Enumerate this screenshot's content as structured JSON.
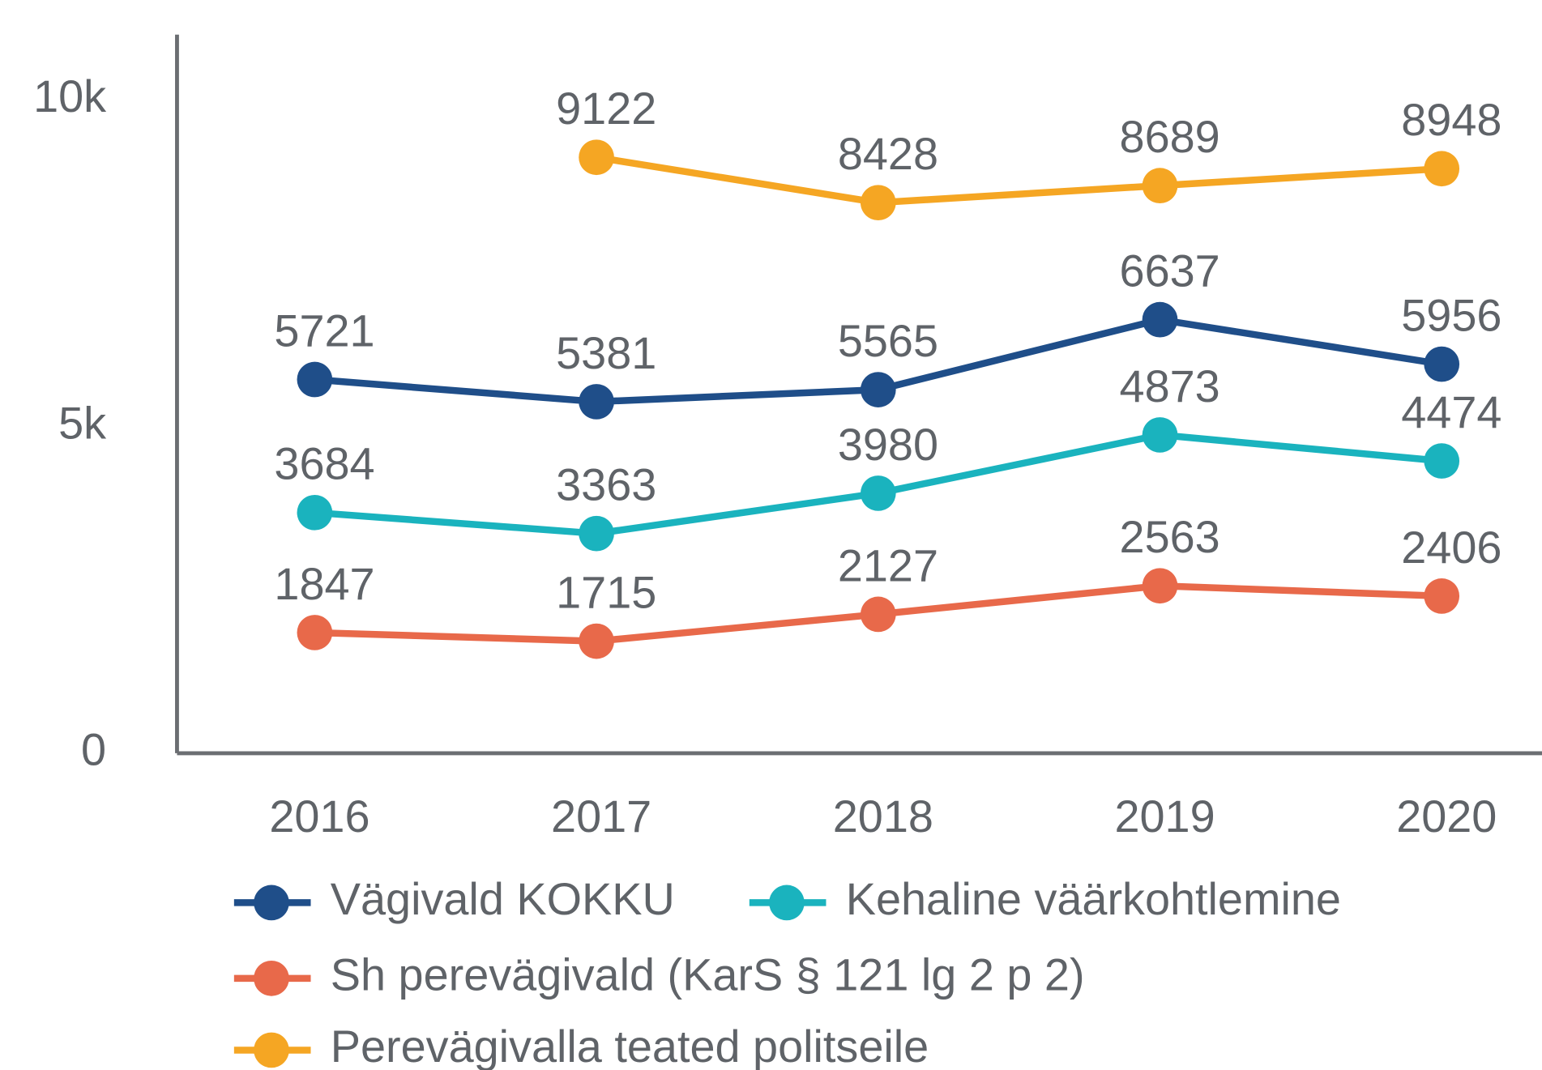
{
  "chart_data": {
    "type": "line",
    "categories": [
      "2016",
      "2017",
      "2018",
      "2019",
      "2020"
    ],
    "series": [
      {
        "name": "Vägivald KOKKU",
        "color": "#1f4e89",
        "values": [
          5721,
          5381,
          5565,
          6637,
          5956
        ]
      },
      {
        "name": "Kehaline väärkohtlemine",
        "color": "#1ab3be",
        "values": [
          3684,
          3363,
          3980,
          4873,
          4474
        ]
      },
      {
        "name": "Sh perevägivald (KarS § 121 lg 2 p 2)",
        "color": "#e8694a",
        "values": [
          1847,
          1715,
          2127,
          2563,
          2406
        ]
      },
      {
        "name": "Perevägivalla teated politseile",
        "color": "#f5a623",
        "values": [
          null,
          9122,
          8428,
          8689,
          8948
        ]
      }
    ],
    "ylim": [
      0,
      11000
    ],
    "yticks": [
      0,
      {
        "value": 5000,
        "label": "5k"
      },
      {
        "value": 10000,
        "label": "10k"
      }
    ],
    "grid": false,
    "legend": "bottom"
  }
}
